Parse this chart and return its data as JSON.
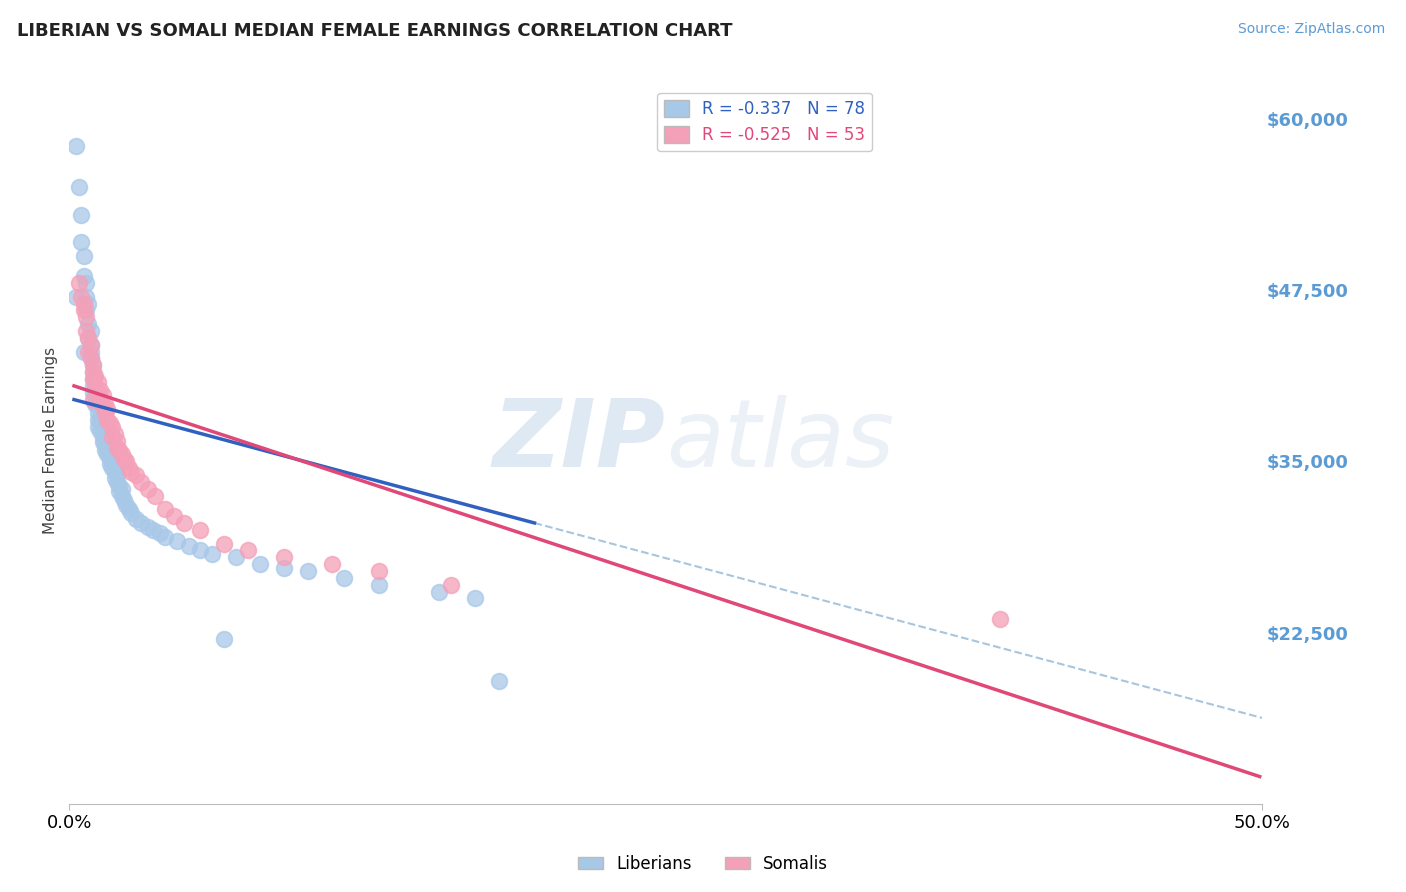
{
  "title": "LIBERIAN VS SOMALI MEDIAN FEMALE EARNINGS CORRELATION CHART",
  "source": "Source: ZipAtlas.com",
  "xlabel": "",
  "ylabel": "Median Female Earnings",
  "xlim": [
    0.0,
    0.5
  ],
  "ylim": [
    10000,
    63000
  ],
  "yticks": [
    22500,
    35000,
    47500,
    60000
  ],
  "ytick_labels": [
    "$22,500",
    "$35,000",
    "$47,500",
    "$60,000"
  ],
  "legend_label1": "R = -0.337   N = 78",
  "legend_label2": "R = -0.525   N = 53",
  "liberian_color": "#a8c8e8",
  "somali_color": "#f4a0b8",
  "trend_line_liberian_color": "#3060c0",
  "trend_line_somali_color": "#e04878",
  "trend_dashed_liberian_color": "#90b8d8",
  "background_color": "#ffffff",
  "grid_color": "#c8c8d8",
  "watermark_zip": "ZIP",
  "watermark_atlas": "atlas",
  "lib_trend_x0": 0.002,
  "lib_trend_x1": 0.195,
  "lib_trend_y0": 39500,
  "lib_trend_y1": 30500,
  "som_trend_x0": 0.002,
  "som_trend_x1": 0.499,
  "som_trend_y0": 40500,
  "som_trend_y1": 12000,
  "lib_x": [
    0.003,
    0.004,
    0.005,
    0.005,
    0.006,
    0.006,
    0.007,
    0.007,
    0.007,
    0.008,
    0.008,
    0.008,
    0.009,
    0.009,
    0.009,
    0.009,
    0.01,
    0.01,
    0.01,
    0.01,
    0.01,
    0.011,
    0.011,
    0.011,
    0.012,
    0.012,
    0.012,
    0.012,
    0.012,
    0.013,
    0.013,
    0.013,
    0.014,
    0.014,
    0.014,
    0.015,
    0.015,
    0.015,
    0.016,
    0.016,
    0.017,
    0.017,
    0.018,
    0.018,
    0.019,
    0.019,
    0.02,
    0.02,
    0.021,
    0.021,
    0.022,
    0.022,
    0.023,
    0.024,
    0.025,
    0.026,
    0.028,
    0.03,
    0.033,
    0.035,
    0.038,
    0.04,
    0.045,
    0.05,
    0.055,
    0.06,
    0.07,
    0.08,
    0.09,
    0.1,
    0.115,
    0.13,
    0.155,
    0.17,
    0.003,
    0.006,
    0.065,
    0.18
  ],
  "lib_y": [
    58000,
    55000,
    53000,
    51000,
    50000,
    48500,
    48000,
    47000,
    46000,
    46500,
    45000,
    44000,
    44500,
    43500,
    43000,
    42500,
    42000,
    41500,
    41000,
    40500,
    40000,
    40200,
    39800,
    39200,
    39500,
    39000,
    38500,
    38000,
    37500,
    38200,
    37800,
    37200,
    37000,
    36700,
    36400,
    36800,
    36200,
    35800,
    36000,
    35500,
    35200,
    34800,
    35000,
    34500,
    34200,
    33800,
    34000,
    33500,
    33200,
    32800,
    33000,
    32500,
    32200,
    31800,
    31500,
    31200,
    30800,
    30500,
    30200,
    30000,
    29800,
    29500,
    29200,
    28800,
    28500,
    28200,
    28000,
    27500,
    27200,
    27000,
    26500,
    26000,
    25500,
    25000,
    47000,
    43000,
    22000,
    19000
  ],
  "som_x": [
    0.004,
    0.005,
    0.006,
    0.007,
    0.007,
    0.008,
    0.008,
    0.009,
    0.009,
    0.01,
    0.01,
    0.01,
    0.011,
    0.011,
    0.012,
    0.012,
    0.013,
    0.013,
    0.014,
    0.014,
    0.015,
    0.015,
    0.016,
    0.016,
    0.017,
    0.018,
    0.018,
    0.019,
    0.02,
    0.02,
    0.021,
    0.022,
    0.023,
    0.024,
    0.025,
    0.026,
    0.028,
    0.03,
    0.033,
    0.036,
    0.04,
    0.044,
    0.048,
    0.055,
    0.065,
    0.075,
    0.09,
    0.11,
    0.13,
    0.16,
    0.006,
    0.01,
    0.39
  ],
  "som_y": [
    48000,
    47000,
    46000,
    45500,
    44500,
    44000,
    43000,
    43500,
    42500,
    42000,
    41500,
    41000,
    41200,
    40500,
    40800,
    40000,
    40200,
    39500,
    39800,
    39000,
    39200,
    38500,
    38800,
    38000,
    37800,
    37500,
    36800,
    37000,
    36500,
    36000,
    35800,
    35500,
    35200,
    35000,
    34500,
    34200,
    34000,
    33500,
    33000,
    32500,
    31500,
    31000,
    30500,
    30000,
    29000,
    28500,
    28000,
    27500,
    27000,
    26000,
    46500,
    39500,
    23500
  ]
}
